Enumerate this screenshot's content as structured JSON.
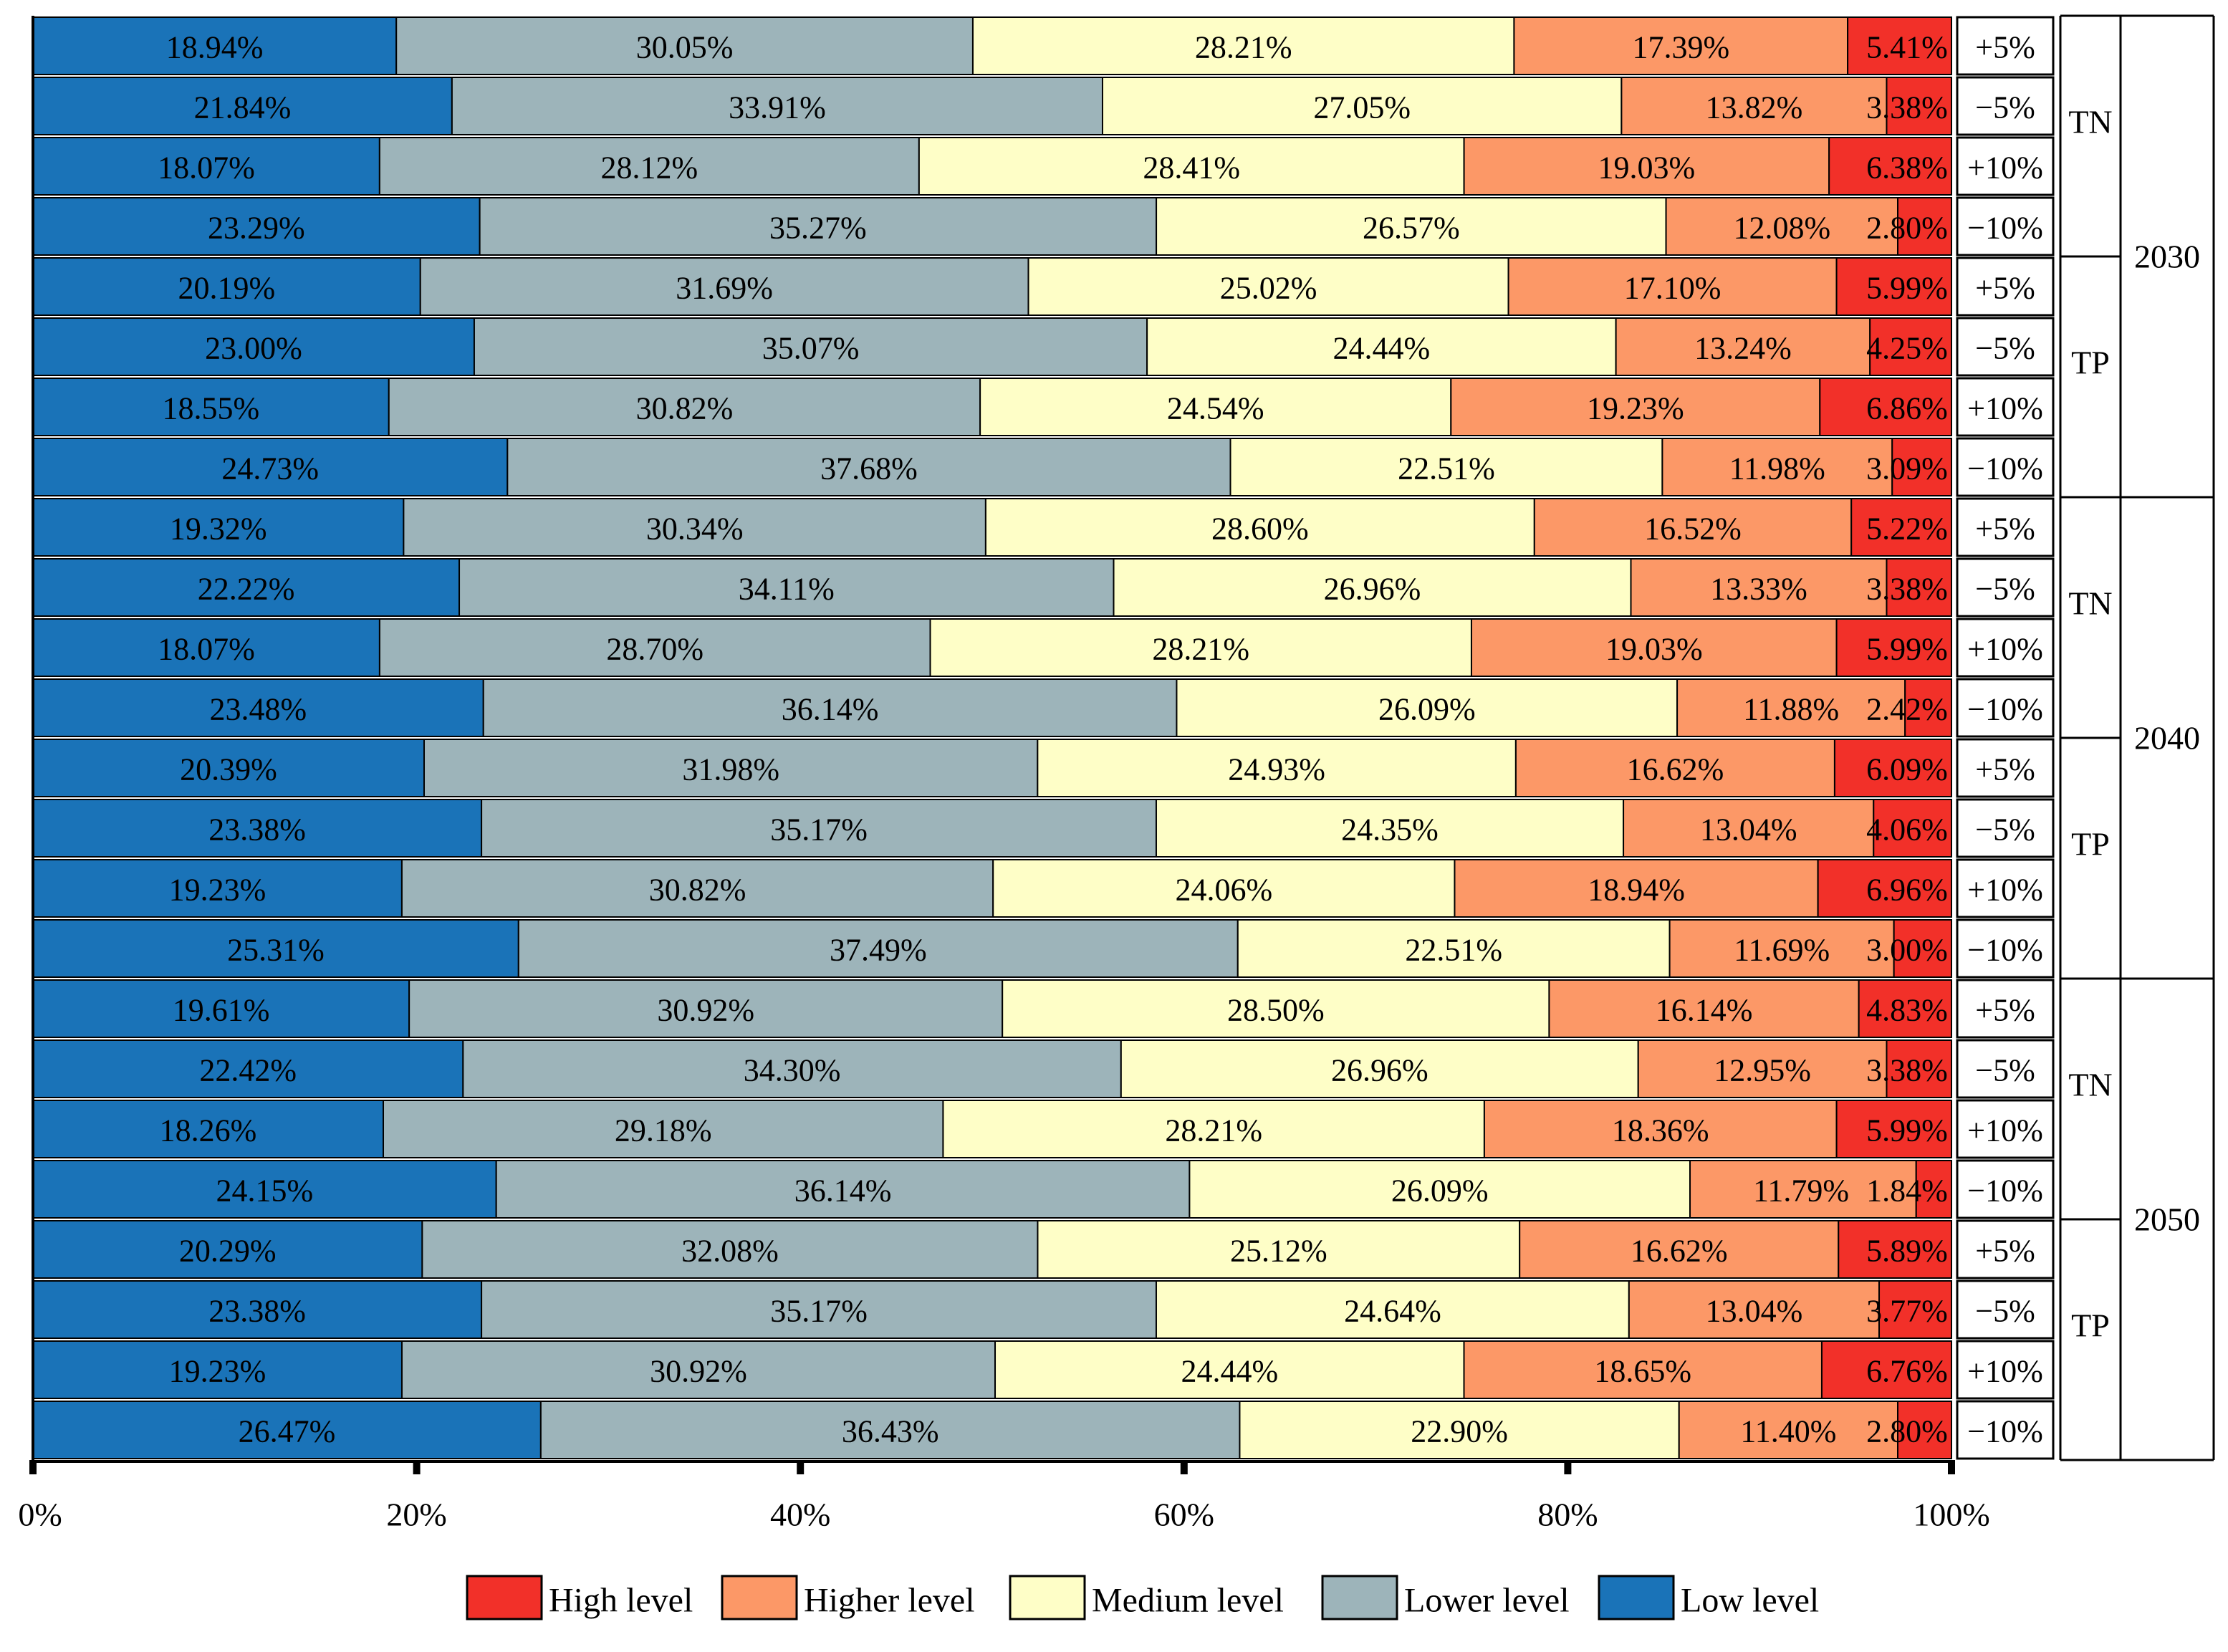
{
  "chart_data": {
    "type": "bar",
    "orientation": "horizontal-stacked-100",
    "segment_order": [
      "Low level",
      "Lower level",
      "Medium level",
      "Higher level",
      "High level"
    ],
    "colors": {
      "Low level": "#1a73b8",
      "Lower level": "#9db4ba",
      "Medium level": "#fefec7",
      "Higher level": "#fc9867",
      "High level": "#f23029"
    },
    "x_ticks": [
      "0%",
      "20%",
      "40%",
      "60%",
      "80%",
      "100%"
    ],
    "xlim": [
      0,
      100
    ],
    "legend": [
      "High level",
      "Higher level",
      "Medium level",
      "Lower level",
      "Low level"
    ],
    "years": [
      "2030",
      "2040",
      "2050"
    ],
    "groups": [
      "TN",
      "TP"
    ],
    "scenarios": [
      "+5%",
      "−5%",
      "+10%",
      "−10%"
    ],
    "rows": [
      {
        "year": "2030",
        "group": "TN",
        "scenario": "+5%",
        "values": [
          18.94,
          30.05,
          28.21,
          17.39,
          5.41
        ],
        "labels": [
          "18.94%",
          "30.05%",
          "28.21%",
          "17.39%",
          "5.41%"
        ]
      },
      {
        "year": "2030",
        "group": "TN",
        "scenario": "−5%",
        "values": [
          21.84,
          33.91,
          27.05,
          13.82,
          3.38
        ],
        "labels": [
          "21.84%",
          "33.91%",
          "27.05%",
          "13.82%",
          "3.38%"
        ]
      },
      {
        "year": "2030",
        "group": "TN",
        "scenario": "+10%",
        "values": [
          18.07,
          28.12,
          28.41,
          19.03,
          6.38
        ],
        "labels": [
          "18.07%",
          "28.12%",
          "28.41%",
          "19.03%",
          "6.38%"
        ]
      },
      {
        "year": "2030",
        "group": "TN",
        "scenario": "−10%",
        "values": [
          23.29,
          35.27,
          26.57,
          12.08,
          2.8
        ],
        "labels": [
          "23.29%",
          "35.27%",
          "26.57%",
          "12.08%",
          "2.80%"
        ]
      },
      {
        "year": "2030",
        "group": "TP",
        "scenario": "+5%",
        "values": [
          20.19,
          31.69,
          25.02,
          17.1,
          5.99
        ],
        "labels": [
          "20.19%",
          "31.69%",
          "25.02%",
          "17.10%",
          "5.99%"
        ]
      },
      {
        "year": "2030",
        "group": "TP",
        "scenario": "−5%",
        "values": [
          23.0,
          35.07,
          24.44,
          13.24,
          4.25
        ],
        "labels": [
          "23.00%",
          "35.07%",
          "24.44%",
          "13.24%",
          "4.25%"
        ]
      },
      {
        "year": "2030",
        "group": "TP",
        "scenario": "+10%",
        "values": [
          18.55,
          30.82,
          24.54,
          19.23,
          6.86
        ],
        "labels": [
          "18.55%",
          "30.82%",
          "24.54%",
          "19.23%",
          "6.86%"
        ]
      },
      {
        "year": "2030",
        "group": "TP",
        "scenario": "−10%",
        "values": [
          24.73,
          37.68,
          22.51,
          11.98,
          3.09
        ],
        "labels": [
          "24.73%",
          "37.68%",
          "22.51%",
          "11.98%",
          "3.09%"
        ]
      },
      {
        "year": "2040",
        "group": "TN",
        "scenario": "+5%",
        "values": [
          19.32,
          30.34,
          28.6,
          16.52,
          5.22
        ],
        "labels": [
          "19.32%",
          "30.34%",
          "28.60%",
          "16.52%",
          "5.22%"
        ]
      },
      {
        "year": "2040",
        "group": "TN",
        "scenario": "−5%",
        "values": [
          22.22,
          34.11,
          26.96,
          13.33,
          3.38
        ],
        "labels": [
          "22.22%",
          "34.11%",
          "26.96%",
          "13.33%",
          "3.38%"
        ]
      },
      {
        "year": "2040",
        "group": "TN",
        "scenario": "+10%",
        "values": [
          18.07,
          28.7,
          28.21,
          19.03,
          5.99
        ],
        "labels": [
          "18.07%",
          "28.70%",
          "28.21%",
          "19.03%",
          "5.99%"
        ]
      },
      {
        "year": "2040",
        "group": "TN",
        "scenario": "−10%",
        "values": [
          23.48,
          36.14,
          26.09,
          11.88,
          2.42
        ],
        "labels": [
          "23.48%",
          "36.14%",
          "26.09%",
          "11.88%",
          "2.42%"
        ]
      },
      {
        "year": "2040",
        "group": "TP",
        "scenario": "+5%",
        "values": [
          20.39,
          31.98,
          24.93,
          16.62,
          6.09
        ],
        "labels": [
          "20.39%",
          "31.98%",
          "24.93%",
          "16.62%",
          "6.09%"
        ]
      },
      {
        "year": "2040",
        "group": "TP",
        "scenario": "−5%",
        "values": [
          23.38,
          35.17,
          24.35,
          13.04,
          4.06
        ],
        "labels": [
          "23.38%",
          "35.17%",
          "24.35%",
          "13.04%",
          "4.06%"
        ]
      },
      {
        "year": "2040",
        "group": "TP",
        "scenario": "+10%",
        "values": [
          19.23,
          30.82,
          24.06,
          18.94,
          6.96
        ],
        "labels": [
          "19.23%",
          "30.82%",
          "24.06%",
          "18.94%",
          "6.96%"
        ]
      },
      {
        "year": "2040",
        "group": "TP",
        "scenario": "−10%",
        "values": [
          25.31,
          37.49,
          22.51,
          11.69,
          3.0
        ],
        "labels": [
          "25.31%",
          "37.49%",
          "22.51%",
          "11.69%",
          "3.00%"
        ]
      },
      {
        "year": "2050",
        "group": "TN",
        "scenario": "+5%",
        "values": [
          19.61,
          30.92,
          28.5,
          16.14,
          4.83
        ],
        "labels": [
          "19.61%",
          "30.92%",
          "28.50%",
          "16.14%",
          "4.83%"
        ]
      },
      {
        "year": "2050",
        "group": "TN",
        "scenario": "−5%",
        "values": [
          22.42,
          34.3,
          26.96,
          12.95,
          3.38
        ],
        "labels": [
          "22.42%",
          "34.30%",
          "26.96%",
          "12.95%",
          "3.38%"
        ]
      },
      {
        "year": "2050",
        "group": "TN",
        "scenario": "+10%",
        "values": [
          18.26,
          29.18,
          28.21,
          18.36,
          5.99
        ],
        "labels": [
          "18.26%",
          "29.18%",
          "28.21%",
          "18.36%",
          "5.99%"
        ]
      },
      {
        "year": "2050",
        "group": "TN",
        "scenario": "−10%",
        "values": [
          24.15,
          36.14,
          26.09,
          11.79,
          1.84
        ],
        "labels": [
          "24.15%",
          "36.14%",
          "26.09%",
          "11.79%",
          "1.84%"
        ]
      },
      {
        "year": "2050",
        "group": "TP",
        "scenario": "+5%",
        "values": [
          20.29,
          32.08,
          25.12,
          16.62,
          5.89
        ],
        "labels": [
          "20.29%",
          "32.08%",
          "25.12%",
          "16.62%",
          "5.89%"
        ]
      },
      {
        "year": "2050",
        "group": "TP",
        "scenario": "−5%",
        "values": [
          23.38,
          35.17,
          24.64,
          13.04,
          3.77
        ],
        "labels": [
          "23.38%",
          "35.17%",
          "24.64%",
          "13.04%",
          "3.77%"
        ]
      },
      {
        "year": "2050",
        "group": "TP",
        "scenario": "+10%",
        "values": [
          19.23,
          30.92,
          24.44,
          18.65,
          6.76
        ],
        "labels": [
          "19.23%",
          "30.92%",
          "24.44%",
          "18.65%",
          "6.76%"
        ]
      },
      {
        "year": "2050",
        "group": "TP",
        "scenario": "−10%",
        "values": [
          26.47,
          36.43,
          22.9,
          11.4,
          2.8
        ],
        "labels": [
          "26.47%",
          "36.43%",
          "22.90%",
          "11.40%",
          "2.80%"
        ]
      }
    ]
  }
}
